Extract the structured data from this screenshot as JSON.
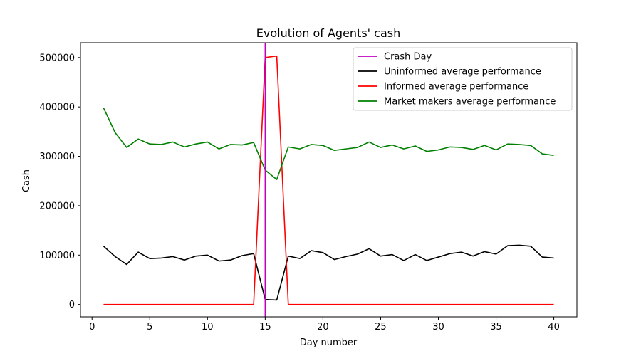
{
  "chart_data": {
    "type": "line",
    "title": "Evolution of Agents' cash",
    "xlabel": "Day number",
    "ylabel": "Cash",
    "xlim": [
      -1.0,
      42.0
    ],
    "ylim": [
      -25000,
      530000
    ],
    "xticks": [
      0,
      5,
      10,
      15,
      20,
      25,
      30,
      35,
      40
    ],
    "yticks": [
      0,
      100000,
      200000,
      300000,
      400000,
      500000
    ],
    "xtick_labels": [
      "0",
      "5",
      "10",
      "15",
      "20",
      "25",
      "30",
      "35",
      "40"
    ],
    "ytick_labels": [
      "0",
      "100000",
      "200000",
      "300000",
      "400000",
      "500000"
    ],
    "grid": false,
    "legend_position": "top-right",
    "crash_day": {
      "name": "Crash Day",
      "x": 15,
      "color": "#bf00bf"
    },
    "x": [
      1,
      2,
      3,
      4,
      5,
      6,
      7,
      8,
      9,
      10,
      11,
      12,
      13,
      14,
      15,
      16,
      17,
      18,
      19,
      20,
      21,
      22,
      23,
      24,
      25,
      26,
      27,
      28,
      29,
      30,
      31,
      32,
      33,
      34,
      35,
      36,
      37,
      38,
      39,
      40
    ],
    "series": [
      {
        "name": "Uninformed average performance",
        "color": "#000000",
        "values": [
          118000,
          97000,
          81000,
          106000,
          93000,
          94000,
          97000,
          90000,
          98000,
          100000,
          88000,
          90000,
          99000,
          103000,
          10000,
          9000,
          98000,
          93000,
          109000,
          105000,
          91000,
          97000,
          102000,
          113000,
          98000,
          101000,
          89000,
          101000,
          89000,
          96000,
          103000,
          106000,
          98000,
          107000,
          102000,
          119000,
          120000,
          118000,
          96000,
          94000
        ]
      },
      {
        "name": "Informed average performance",
        "color": "#ff0000",
        "values": [
          0,
          0,
          0,
          0,
          0,
          0,
          0,
          0,
          0,
          0,
          0,
          0,
          0,
          0,
          500000,
          503000,
          0,
          0,
          0,
          0,
          0,
          0,
          0,
          0,
          0,
          0,
          0,
          0,
          0,
          0,
          0,
          0,
          0,
          0,
          0,
          0,
          0,
          0,
          0,
          0
        ]
      },
      {
        "name": "Market makers average performance",
        "color": "#008000",
        "values": [
          398000,
          348000,
          318000,
          335000,
          325000,
          324000,
          329000,
          319000,
          325000,
          329000,
          315000,
          324000,
          323000,
          328000,
          272000,
          253000,
          319000,
          315000,
          324000,
          322000,
          312000,
          315000,
          318000,
          329000,
          318000,
          323000,
          315000,
          321000,
          310000,
          313000,
          319000,
          318000,
          314000,
          322000,
          313000,
          325000,
          324000,
          322000,
          305000,
          302000
        ]
      }
    ]
  }
}
